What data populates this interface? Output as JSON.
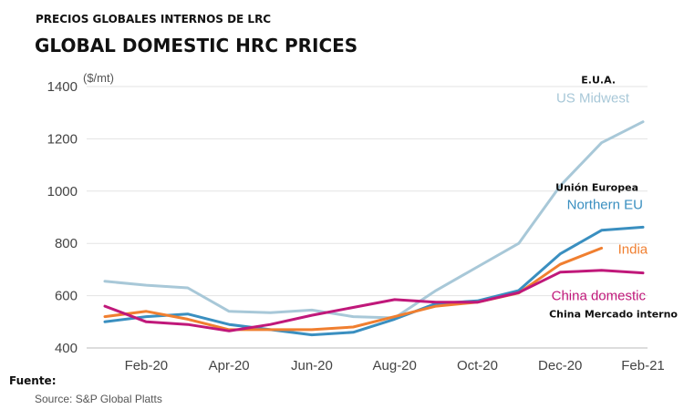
{
  "header": {
    "title_es": "PRECIOS  GLOBALES INTERNOS DE LRC",
    "title_en": "GLOBAL DOMESTIC HRC PRICES",
    "unit": "($/mt)"
  },
  "footer": {
    "fuente": "Fuente:",
    "source": "Source: S&P Global Platts"
  },
  "chart_data": {
    "type": "line",
    "ylim": [
      400,
      1400
    ],
    "yticks": [
      400,
      600,
      800,
      1000,
      1200,
      1400
    ],
    "xlim": [
      0,
      13
    ],
    "xticks": [
      {
        "x": 1,
        "label": "Feb-20"
      },
      {
        "x": 3,
        "label": "Apr-20"
      },
      {
        "x": 5,
        "label": "Jun-20"
      },
      {
        "x": 7,
        "label": "Aug-20"
      },
      {
        "x": 9,
        "label": "Oct-20"
      },
      {
        "x": 11,
        "label": "Dec-20"
      },
      {
        "x": 13,
        "label": "Feb-21"
      }
    ],
    "grid": true,
    "series": [
      {
        "name": "US Midwest",
        "label_es": "E.U.A.",
        "color": "#a8c8d8",
        "x": [
          0,
          1,
          2,
          3,
          4,
          5,
          6,
          7,
          8,
          9,
          10,
          11,
          12,
          13
        ],
        "values": [
          655,
          640,
          630,
          540,
          535,
          545,
          520,
          515,
          620,
          710,
          800,
          1020,
          1185,
          1265
        ]
      },
      {
        "name": "Northern EU",
        "label_es": "Unión Europea",
        "color": "#3a8fc0",
        "x": [
          0,
          1,
          2,
          3,
          4,
          5,
          6,
          7,
          8,
          9,
          10,
          11,
          12,
          13
        ],
        "values": [
          500,
          520,
          530,
          490,
          470,
          450,
          460,
          510,
          570,
          580,
          620,
          760,
          850,
          862
        ]
      },
      {
        "name": "India",
        "label_es": "",
        "color": "#f07f30",
        "x": [
          0,
          1,
          2,
          3,
          4,
          5,
          6,
          7,
          8,
          9,
          10,
          11,
          12
        ],
        "values": [
          520,
          540,
          510,
          470,
          470,
          470,
          480,
          520,
          560,
          575,
          610,
          720,
          782
        ]
      },
      {
        "name": "China domestic",
        "label_es": "China Mercado interno",
        "color": "#c0187a",
        "x": [
          0,
          1,
          2,
          3,
          4,
          5,
          6,
          7,
          8,
          9,
          10,
          11,
          12,
          13
        ],
        "values": [
          560,
          500,
          490,
          465,
          490,
          525,
          555,
          585,
          575,
          575,
          612,
          690,
          697,
          687
        ]
      }
    ]
  }
}
